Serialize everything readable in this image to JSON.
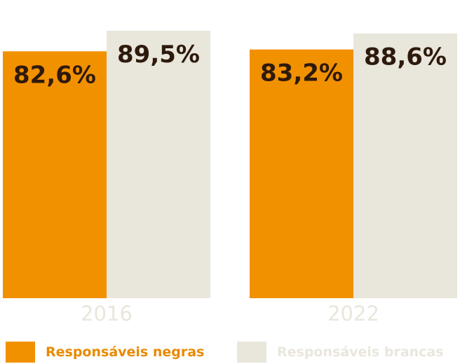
{
  "chart_data": {
    "type": "bar",
    "categories": [
      "2016",
      "2022"
    ],
    "series": [
      {
        "name": "Responsáveis negras",
        "values": [
          82.6,
          83.2
        ],
        "labels": [
          "82,6%",
          "83,2%"
        ],
        "color": "#f29100"
      },
      {
        "name": "Responsáveis brancas",
        "values": [
          89.5,
          88.6
        ],
        "labels": [
          "89,5%",
          "88,6%"
        ],
        "color": "#e9e6dc"
      }
    ],
    "title": "",
    "xlabel": "",
    "ylabel": "",
    "ylim": [
      0,
      100
    ],
    "grid": false,
    "legend_position": "bottom"
  },
  "legend": {
    "negras": "Responsáveis negras",
    "brancas": "Responsáveis brancas"
  },
  "colors": {
    "negras": "#f29100",
    "negras_text": "#e98a00",
    "brancas": "#e9e6dc",
    "value_text": "#2e1a0c"
  }
}
